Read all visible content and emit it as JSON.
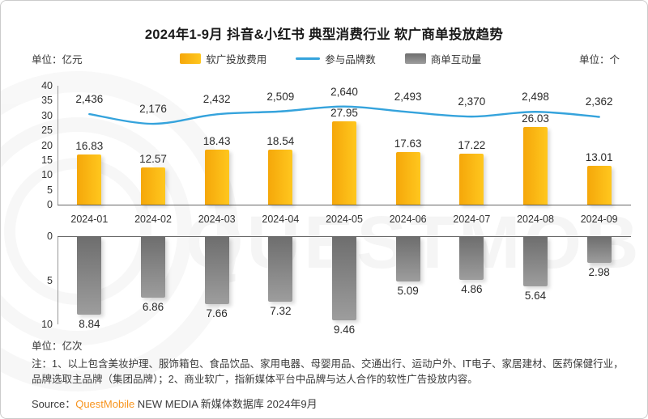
{
  "title": "2024年1-9月 抖音&小红书 典型消费行业 软广商单投放趋势",
  "units": {
    "left": "单位：亿元",
    "right": "单位：个",
    "bottom": "单位：亿次"
  },
  "legend": [
    {
      "label": "软广投放费用",
      "type": "bar",
      "color": "#FFB81A"
    },
    {
      "label": "参与品牌数",
      "type": "line",
      "color": "#35A3DC"
    },
    {
      "label": "商单互动量",
      "type": "bar",
      "color": "#808080"
    }
  ],
  "watermark": "QUESTMOBILE",
  "note": "注：1、以上包含美妆护理、服饰箱包、食品饮品、家用电器、母婴用品、交通出行、运动户外、IT电子、家居建材、医药保健行业，品牌选取主品牌（集团品牌）；2、商业软广，指新媒体平台中品牌与达人合作的软性广告投放内容。",
  "source": {
    "prefix": "Source：",
    "brand": "QuestMobile",
    "suffix": " NEW MEDIA 新媒体数据库 2024年9月"
  },
  "chart_data": {
    "type": "combo",
    "title": "2024年1-9月 抖音&小红书 典型消费行业 软广商单投放趋势",
    "categories": [
      "2024-01",
      "2024-02",
      "2024-03",
      "2024-04",
      "2024-05",
      "2024-06",
      "2024-07",
      "2024-08",
      "2024-09"
    ],
    "series": [
      {
        "name": "软广投放费用",
        "type": "bar",
        "axis": "left",
        "unit": "亿元",
        "color_from": "#F5A70A",
        "color_to": "#FFC71E",
        "values": [
          16.83,
          12.57,
          18.43,
          18.54,
          27.95,
          17.63,
          17.22,
          26.03,
          13.01
        ]
      },
      {
        "name": "参与品牌数",
        "type": "line",
        "axis": "right",
        "unit": "个",
        "color": "#35A3DC",
        "values": [
          2436,
          2176,
          2432,
          2509,
          2640,
          2493,
          2370,
          2498,
          2362
        ]
      },
      {
        "name": "商单互动量",
        "type": "bar",
        "axis": "bottom-inverted",
        "unit": "亿次",
        "color_from": "#6E6E6E",
        "color_to": "#9D9D9D",
        "values": [
          8.84,
          6.86,
          7.66,
          7.32,
          9.46,
          5.09,
          4.86,
          5.64,
          2.98
        ]
      }
    ],
    "left_axis": {
      "min": 0,
      "max": 40,
      "step": 5
    },
    "right_axis": {
      "scale_max": 3200,
      "ticks_visible": false
    },
    "interaction_axis": {
      "min": 0,
      "max": 10,
      "step": 5,
      "inverted": true
    },
    "grid": false,
    "legend_position": "top-center"
  }
}
